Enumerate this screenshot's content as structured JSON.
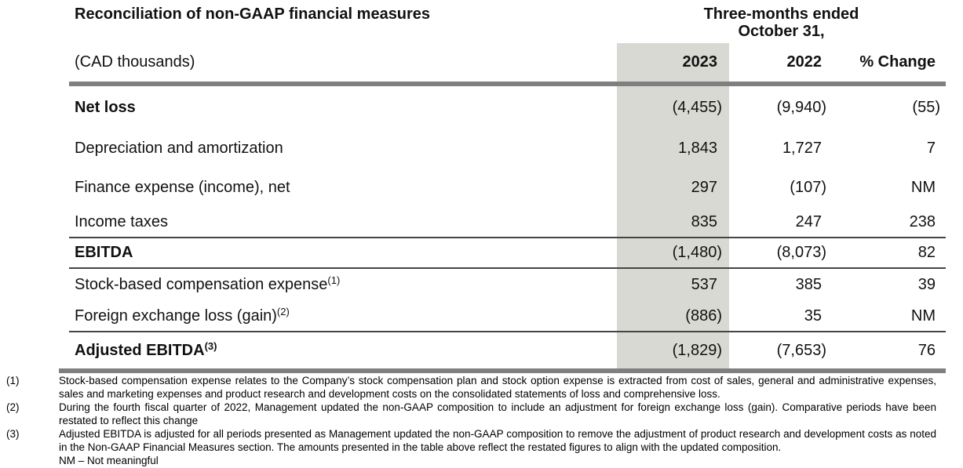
{
  "title": "Reconciliation of non-GAAP financial measures",
  "period_header": {
    "line1": "Three-months ended",
    "line2": "October 31,"
  },
  "table": {
    "unit_label": "(CAD thousands)",
    "columns": [
      "2023",
      "2022",
      "% Change"
    ],
    "rows": [
      {
        "label": "Net loss",
        "sup": "",
        "y2023": "(4,455)",
        "y2022": "(9,940)",
        "change": "(55)"
      },
      {
        "label": "Depreciation and amortization",
        "sup": "",
        "y2023": "1,843",
        "y2022": "1,727",
        "change": "7"
      },
      {
        "label": "Finance expense (income), net",
        "sup": "",
        "y2023": "297",
        "y2022": "(107)",
        "change": "NM"
      },
      {
        "label": "Income taxes",
        "sup": "",
        "y2023": "835",
        "y2022": "247",
        "change": "238"
      },
      {
        "label": "EBITDA",
        "sup": "",
        "y2023": "(1,480)",
        "y2022": "(8,073)",
        "change": "82"
      },
      {
        "label": "Stock-based compensation expense",
        "sup": "(1)",
        "y2023": "537",
        "y2022": "385",
        "change": "39"
      },
      {
        "label": "Foreign exchange loss (gain)",
        "sup": "(2)",
        "y2023": "(886)",
        "y2022": "35",
        "change": "NM"
      },
      {
        "label": "Adjusted EBITDA",
        "sup": "(3)",
        "y2023": "(1,829)",
        "y2022": "(7,653)",
        "change": "76"
      }
    ]
  },
  "footnotes": [
    {
      "marker": "(1)",
      "text": "Stock-based compensation expense relates to the Company’s stock compensation plan and stock option expense is extracted from cost of sales, general and administrative expenses, sales and marketing expenses and product research and development costs on the consolidated statements of loss and comprehensive loss."
    },
    {
      "marker": "(2)",
      "text": "During the fourth fiscal quarter of 2022, Management updated the non-GAAP composition to include an adjustment for foreign exchange loss (gain). Comparative periods have been restated to reflect this change"
    },
    {
      "marker": "(3)",
      "text": "Adjusted EBITDA is adjusted for all periods presented as Management updated the non-GAAP composition to remove the adjustment of product research and development costs as noted in the Non-GAAP Financial Measures section. The amounts presented in the table above reflect the restated figures to align with the updated composition."
    }
  ],
  "nm_note": "NM – Not meaningful",
  "colors": {
    "column_shade": "#d9d9d4",
    "thick_rule": "#7f7f7f",
    "thin_rule": "#454545",
    "text": "#111111"
  }
}
